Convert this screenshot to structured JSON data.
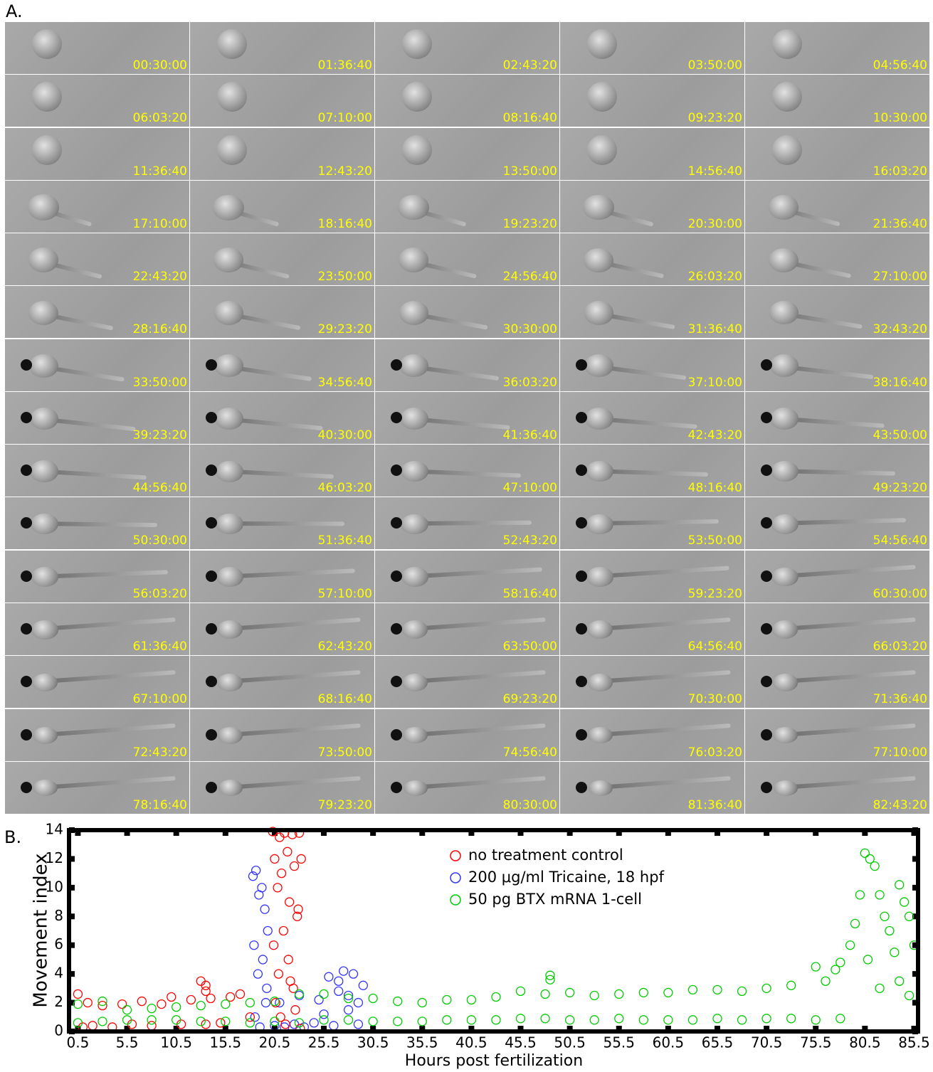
{
  "panel_a": {
    "label": "A.",
    "timestamps": [
      "00:30:00",
      "01:36:40",
      "02:43:20",
      "03:50:00",
      "04:56:40",
      "06:03:20",
      "07:10:00",
      "08:16:40",
      "09:23:20",
      "10:30:00",
      "11:36:40",
      "12:43:20",
      "13:50:00",
      "14:56:40",
      "16:03:20",
      "17:10:00",
      "18:16:40",
      "19:23:20",
      "20:30:00",
      "21:36:40",
      "22:43:20",
      "23:50:00",
      "24:56:40",
      "26:03:20",
      "27:10:00",
      "28:16:40",
      "29:23:20",
      "30:30:00",
      "31:36:40",
      "32:43:20",
      "33:50:00",
      "34:56:40",
      "36:03:20",
      "37:10:00",
      "38:16:40",
      "39:23:20",
      "40:30:00",
      "41:36:40",
      "42:43:20",
      "43:50:00",
      "44:56:40",
      "46:03:20",
      "47:10:00",
      "48:16:40",
      "49:23:20",
      "50:30:00",
      "51:36:40",
      "52:43:20",
      "53:50:00",
      "54:56:40",
      "56:03:20",
      "57:10:00",
      "58:16:40",
      "59:23:20",
      "60:30:00",
      "61:36:40",
      "62:43:20",
      "63:50:00",
      "64:56:40",
      "66:03:20",
      "67:10:00",
      "68:16:40",
      "69:23:20",
      "70:30:00",
      "71:36:40",
      "72:43:20",
      "73:50:00",
      "74:56:40",
      "76:03:20",
      "77:10:00",
      "78:16:40",
      "79:23:20",
      "80:30:00",
      "81:36:40",
      "82:43:20"
    ]
  },
  "chart_data": {
    "type": "scatter",
    "panel_label": "B.",
    "xlabel": "Hours post fertilization",
    "ylabel": "Movement index",
    "xlim": [
      -0.4,
      85.9
    ],
    "ylim": [
      0,
      14
    ],
    "xticks": [
      0.5,
      5.5,
      10.5,
      15.5,
      20.5,
      25.5,
      30.5,
      35.5,
      40.5,
      45.5,
      50.5,
      55.5,
      60.5,
      65.5,
      70.5,
      75.5,
      80.5,
      85.5
    ],
    "yticks": [
      0,
      2,
      4,
      6,
      8,
      10,
      12,
      14
    ],
    "legend": "upper center",
    "series": [
      {
        "name": "no treatment control",
        "color": "#ff0000",
        "x": [
          0.5,
          1,
          1.5,
          2,
          3,
          4,
          5,
          6,
          7,
          8,
          9,
          10,
          11,
          12,
          13,
          13.5,
          13.5,
          13.5,
          14,
          15,
          16,
          17,
          18,
          20.3,
          20.5,
          20.8,
          21,
          21.2,
          21.5,
          21.8,
          22,
          22.3,
          22.5,
          22.8,
          23,
          23.2,
          20.4,
          20.9,
          21.4,
          21.9,
          22.4,
          22.9,
          20.6,
          21.1,
          21.6,
          22.1,
          22.6,
          23.1
        ],
        "y": [
          2.6,
          0.3,
          2.0,
          0.4,
          1.8,
          0.3,
          1.9,
          0.5,
          2.1,
          0.4,
          1.9,
          2.4,
          0.5,
          2.2,
          3.5,
          2.8,
          3.2,
          0.5,
          2.3,
          0.6,
          2.4,
          2.6,
          1.0,
          13.9,
          12,
          10,
          13.5,
          11,
          13.8,
          12.5,
          9,
          13.7,
          11.5,
          8,
          13.8,
          12,
          6,
          4,
          7,
          5,
          3,
          8.5,
          2,
          1,
          0.5,
          3.5,
          1.5,
          0.2
        ]
      },
      {
        "name": "200 μg/ml Tricaine, 18 hpf",
        "color": "#3333ff",
        "x": [
          18.3,
          18.6,
          18.9,
          19.2,
          19.5,
          19.8,
          18.4,
          18.8,
          19.3,
          19.7,
          18.5,
          19,
          19.6,
          20.5,
          21.5,
          22.5,
          23.5,
          24.5,
          25.5,
          26.5,
          27,
          27.5,
          28,
          28.5,
          29,
          29.5,
          26,
          28,
          21,
          23,
          25,
          27,
          29
        ],
        "y": [
          10.8,
          11.2,
          9.5,
          10,
          8.5,
          7,
          6,
          4,
          5,
          3,
          1,
          0.3,
          2,
          0.4,
          0.3,
          0.5,
          0.3,
          0.6,
          1.2,
          0.4,
          3.5,
          4.2,
          2.5,
          4.0,
          0.5,
          3.2,
          3.8,
          1.5,
          2,
          2.5,
          2.2,
          2.8,
          2.0
        ]
      },
      {
        "name": "50 pg BTX mRNA 1-cell",
        "color": "#00cc00",
        "x": [
          0.5,
          3,
          5.5,
          8,
          10.5,
          13,
          15.5,
          18,
          20.5,
          23,
          25.5,
          28,
          30.5,
          33,
          35.5,
          38,
          40.5,
          43,
          45.5,
          48,
          50.5,
          53,
          55.5,
          58,
          60.5,
          63,
          65.5,
          68,
          70.5,
          73,
          75.5,
          78,
          0.5,
          3,
          5.5,
          8,
          10.5,
          13,
          15.5,
          18,
          20.5,
          23,
          25.5,
          28,
          30.5,
          33,
          35.5,
          38,
          40.5,
          43,
          45.5,
          48,
          50.5,
          53,
          55.5,
          58,
          60.5,
          63,
          65.5,
          68,
          70.5,
          73,
          75.5,
          78,
          48.5,
          48.5,
          80.5,
          81,
          81.5,
          82,
          82.5,
          83,
          84,
          84.5,
          85,
          85.5,
          80,
          79,
          79.5,
          80.8,
          83.5,
          84,
          82,
          85,
          76.5,
          77.5
        ],
        "y": [
          1.9,
          2.1,
          1.5,
          1.6,
          1.7,
          1.8,
          1.9,
          2.0,
          2.1,
          2.6,
          2.6,
          2.3,
          2.3,
          2.1,
          2.0,
          2.2,
          2.2,
          2.4,
          2.8,
          2.6,
          2.7,
          2.5,
          2.6,
          2.7,
          2.7,
          2.9,
          2.9,
          2.8,
          3.0,
          3.2,
          4.5,
          4.8,
          0.6,
          0.7,
          0.8,
          0.8,
          0.8,
          0.7,
          0.7,
          0.6,
          0.7,
          0.6,
          0.8,
          0.8,
          0.7,
          0.7,
          0.7,
          0.8,
          0.8,
          0.8,
          0.9,
          0.9,
          0.8,
          0.8,
          0.9,
          0.8,
          0.8,
          0.8,
          0.9,
          0.8,
          0.9,
          0.9,
          0.8,
          0.9,
          3.9,
          3.6,
          12.4,
          12,
          11.5,
          9.5,
          8,
          7,
          10.2,
          9,
          8,
          6,
          9.5,
          6,
          7.5,
          5,
          5.5,
          3.5,
          3,
          2.5,
          3.5,
          4.3
        ]
      }
    ]
  }
}
